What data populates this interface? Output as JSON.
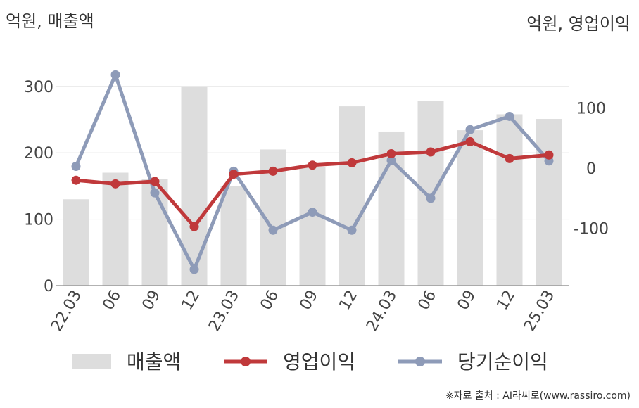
{
  "left_unit_label": "억원, 매출액",
  "right_unit_label": "억원, 영업이익",
  "source": "※자료 출처 : AI라씨로(www.rassiro.com)",
  "colors": {
    "revenue": "#dddddd",
    "operating_profit": "#c0393b",
    "net_income": "#8e9bb8",
    "grid": "#e6e6e6",
    "axis": "#999999"
  },
  "chart_data": {
    "type": "bar",
    "categories": [
      "22.03",
      "06",
      "09",
      "12",
      "23.03",
      "06",
      "09",
      "12",
      "24.03",
      "06",
      "09",
      "12",
      "25.03"
    ],
    "y_left": {
      "ticks": [
        0,
        100,
        200,
        300
      ],
      "ylim": [
        0,
        340
      ]
    },
    "y_right": {
      "ticks": [
        -100,
        0,
        100
      ],
      "ylim": [
        -195,
        180
      ]
    },
    "series": [
      {
        "name": "매출액",
        "type": "bar",
        "axis": "left",
        "values": [
          130,
          170,
          160,
          300,
          150,
          205,
          178,
          270,
          232,
          278,
          234,
          258,
          251
        ]
      },
      {
        "name": "영업이익",
        "type": "line",
        "axis": "right",
        "values": [
          -20,
          -26,
          -22,
          -97,
          -10,
          -5,
          5,
          9,
          24,
          27,
          44,
          16,
          22
        ]
      },
      {
        "name": "당기순이익",
        "type": "line",
        "axis": "right",
        "values": [
          3,
          155,
          -41,
          -168,
          -5,
          -103,
          -73,
          -103,
          13,
          -50,
          64,
          86,
          12
        ]
      }
    ]
  }
}
